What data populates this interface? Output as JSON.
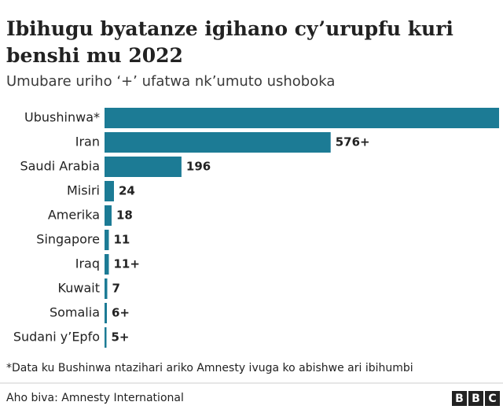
{
  "chart_data": {
    "type": "bar",
    "orientation": "horizontal",
    "title": "Ibihugu byatanze igihano cy’urupfu kuri benshi mu 2022",
    "subtitle": "Umubare uriho ‘+’ ufatwa nk’umuto ushoboka",
    "categories": [
      "Ubushinwa*",
      "Iran",
      "Saudi Arabia",
      "Misiri",
      "Amerika",
      "Singapore",
      "Iraq",
      "Kuwait",
      "Somalia",
      "Sudani y’Epfo"
    ],
    "values": [
      1005,
      576,
      196,
      24,
      18,
      11,
      11,
      7,
      6,
      5
    ],
    "value_labels": [
      null,
      "576+",
      "196",
      "24",
      "18",
      "11",
      "11+",
      "7",
      "6+",
      "5+"
    ],
    "color": "#1c7b95",
    "footnote": "*Data ku Bushinwa ntazihari ariko Amnesty ivuga ko abishwe ari ibihumbi",
    "source": "Aho biva: Amnesty International",
    "logo": [
      "B",
      "B",
      "C"
    ]
  }
}
